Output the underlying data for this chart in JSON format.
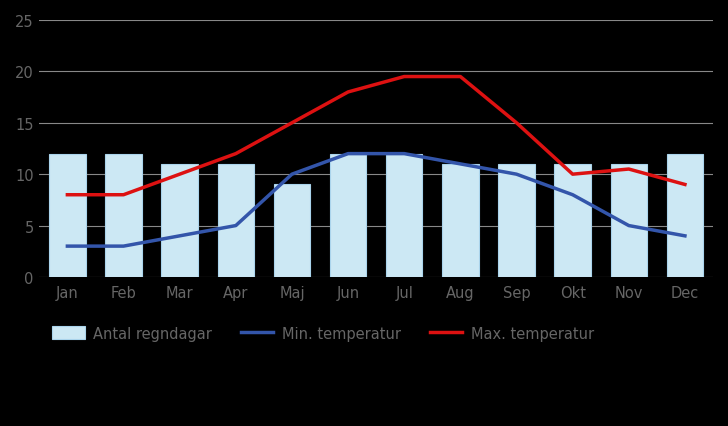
{
  "months": [
    "Jan",
    "Feb",
    "Mar",
    "Apr",
    "Maj",
    "Jun",
    "Jul",
    "Aug",
    "Sep",
    "Okt",
    "Nov",
    "Dec"
  ],
  "rain_days": [
    12,
    12,
    11,
    11,
    9,
    12,
    12,
    11,
    11,
    11,
    11,
    12
  ],
  "min_temp": [
    3,
    3,
    4,
    5,
    10,
    12,
    12,
    11,
    10,
    8,
    5,
    4
  ],
  "max_temp": [
    8,
    8,
    10,
    12,
    15,
    18,
    19.5,
    19.5,
    15,
    10,
    10.5,
    9
  ],
  "bar_color": "#cce8f4",
  "bar_edge_color": "#aad4ec",
  "min_temp_color": "#3355aa",
  "max_temp_color": "#dd1111",
  "figure_bg_color": "#000000",
  "plot_bg_color": "#000000",
  "grid_color": "#888888",
  "tick_label_color": "#666666",
  "ylim": [
    0,
    25
  ],
  "yticks": [
    0,
    5,
    10,
    15,
    20,
    25
  ],
  "legend_bar_label": "Antal regndagar",
  "legend_min_label": "Min. temperatur",
  "legend_max_label": "Max. temperatur",
  "line_width": 2.5,
  "bar_width": 0.65
}
